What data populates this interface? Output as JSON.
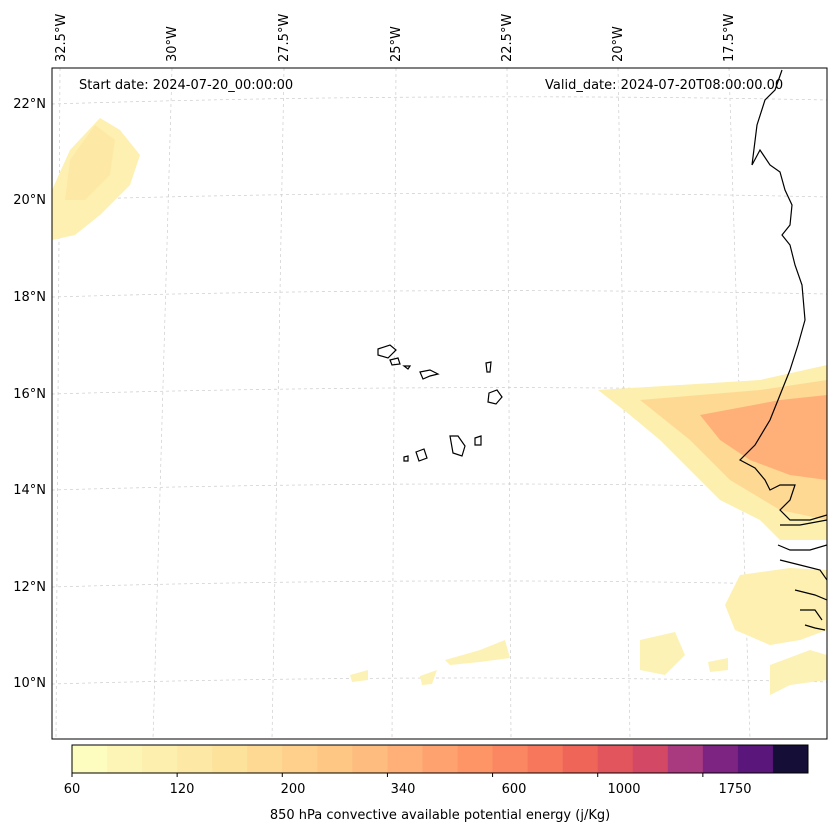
{
  "map": {
    "start_date": "Start date: 2024-07-20_00:00:00",
    "valid_date": "Valid_date: 2024-07-20T08:00:00.00",
    "lon_labels": [
      "32.5°W",
      "30°W",
      "27.5°W",
      "25°W",
      "22.5°W",
      "20°W",
      "17.5°W"
    ],
    "lat_labels": [
      "22°N",
      "20°N",
      "18°N",
      "16°N",
      "14°N",
      "12°N",
      "10°N"
    ],
    "gridlines": true,
    "coastline_color": "#000000"
  },
  "colorbar": {
    "title": "850 hPa convective available potential energy (j/Kg)",
    "tick_labels": [
      "60",
      "120",
      "200",
      "340",
      "600",
      "1000",
      "1750"
    ],
    "levels": [
      "60",
      "80",
      "100",
      "120",
      "140",
      "170",
      "200",
      "240",
      "280",
      "340",
      "400",
      "480",
      "600",
      "700",
      "850",
      "1000",
      "1200",
      "1450",
      "1750",
      "2100"
    ],
    "colors": [
      "#fcfdbf",
      "#fdf5b5",
      "#fdefae",
      "#fde9a5",
      "#fde29c",
      "#fed993",
      "#fed08b",
      "#fec784",
      "#febd7e",
      "#feb078",
      "#fea26f",
      "#fd9567",
      "#fb8762",
      "#f7775c",
      "#ef6659",
      "#e2555c",
      "#d24865",
      "#a93a80",
      "#7d2482",
      "#5a167a",
      "#150e37"
    ]
  }
}
